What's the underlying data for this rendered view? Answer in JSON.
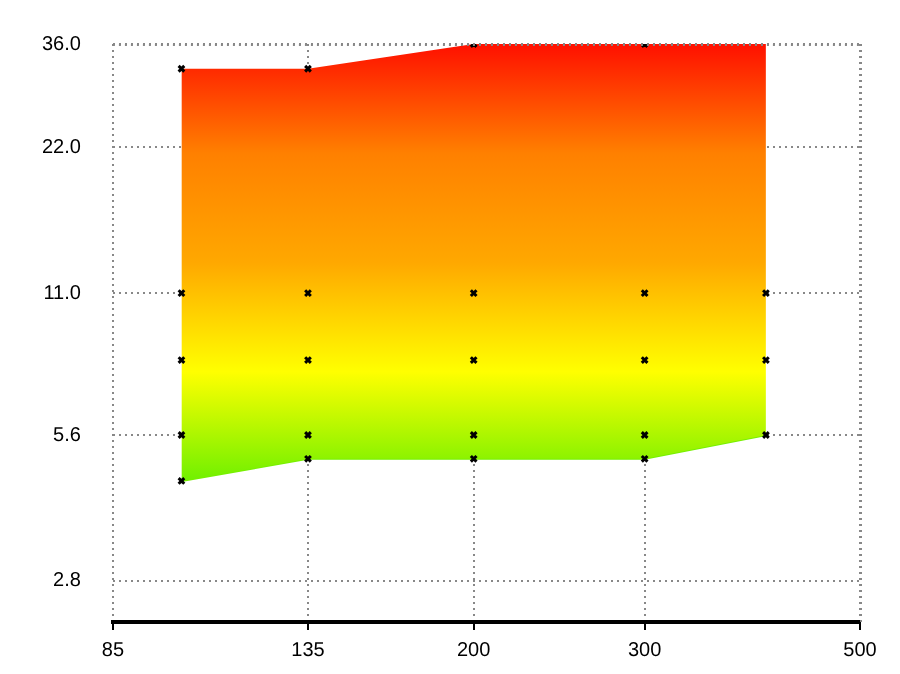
{
  "chart_data": {
    "type": "area",
    "log": "xy",
    "xlim": [
      85,
      500
    ],
    "xticks": [
      85,
      135,
      200,
      300,
      500
    ],
    "ylim": [
      2.3,
      36
    ],
    "yticks": [
      {
        "value": 2.8,
        "label": "2.8"
      },
      {
        "value": 5.6,
        "label": "5.6"
      },
      {
        "value": 11,
        "label": "11.0"
      },
      {
        "value": 22,
        "label": "22.0"
      },
      {
        "value": 36,
        "label": "36.0"
      }
    ],
    "grid": true,
    "legend": false,
    "series": [
      {
        "x": [
          100,
          135,
          200,
          300,
          400
        ],
        "values": [
          32,
          32,
          36,
          36,
          36
        ],
        "colors": [
          "#ff1000",
          "#ff8000",
          "#ffa800",
          "#ffff00",
          "#70f000"
        ]
      },
      {
        "type": "line",
        "color": "#76f000",
        "x": [
          100,
          135,
          200,
          300,
          400
        ],
        "values": [
          4.5,
          5,
          5,
          5,
          5.6
        ]
      },
      {
        "type": "scatter",
        "marker": "cross",
        "color": "#000000",
        "x": [
          100,
          100,
          100,
          100,
          100,
          135,
          135,
          135,
          135,
          135,
          200,
          200,
          200,
          200,
          200,
          300,
          300,
          300,
          300,
          300,
          400,
          400,
          400
        ],
        "values": [
          32,
          11,
          8,
          5.6,
          4.5,
          32,
          11,
          8,
          5.6,
          5,
          36,
          11,
          8,
          5.6,
          5,
          36,
          11,
          8,
          5.6,
          5,
          11,
          8,
          5.6
        ]
      }
    ]
  }
}
